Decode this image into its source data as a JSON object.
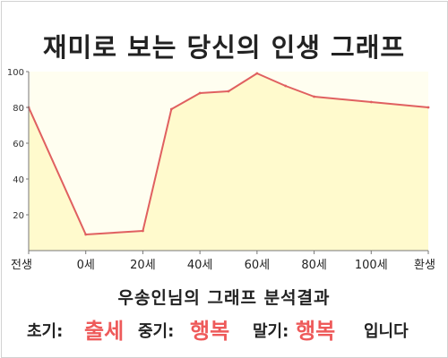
{
  "title": "재미로 보는 당신의 인생 그래프",
  "caption": "우송인님의 그래프 분석결과",
  "summary": {
    "early_label": "초기:",
    "early_value": "출세",
    "middle_label": "중기:",
    "middle_value": "행복",
    "late_label": "말기:",
    "late_value": "행복",
    "suffix": "입니다"
  },
  "chart_data": {
    "type": "area",
    "title": "재미로 보는 당신의 인생 그래프",
    "xlabel": "",
    "ylabel": "",
    "x_ticks": [
      "전생",
      "0세",
      "20세",
      "40세",
      "60세",
      "80세",
      "100세",
      "환생"
    ],
    "y_ticks": [
      20,
      40,
      60,
      80,
      100
    ],
    "ylim": [
      0,
      100
    ],
    "grid": false,
    "legend": "none",
    "series": [
      {
        "x": [
          -20,
          0,
          20,
          30,
          40,
          50,
          60,
          70,
          80,
          100,
          120
        ],
        "values": [
          80,
          9,
          11,
          79,
          88,
          89,
          99,
          92,
          86,
          83,
          80
        ]
      }
    ],
    "colors": {
      "line": "#e06060",
      "fill": "#fffacd",
      "axis": "#777777"
    }
  }
}
